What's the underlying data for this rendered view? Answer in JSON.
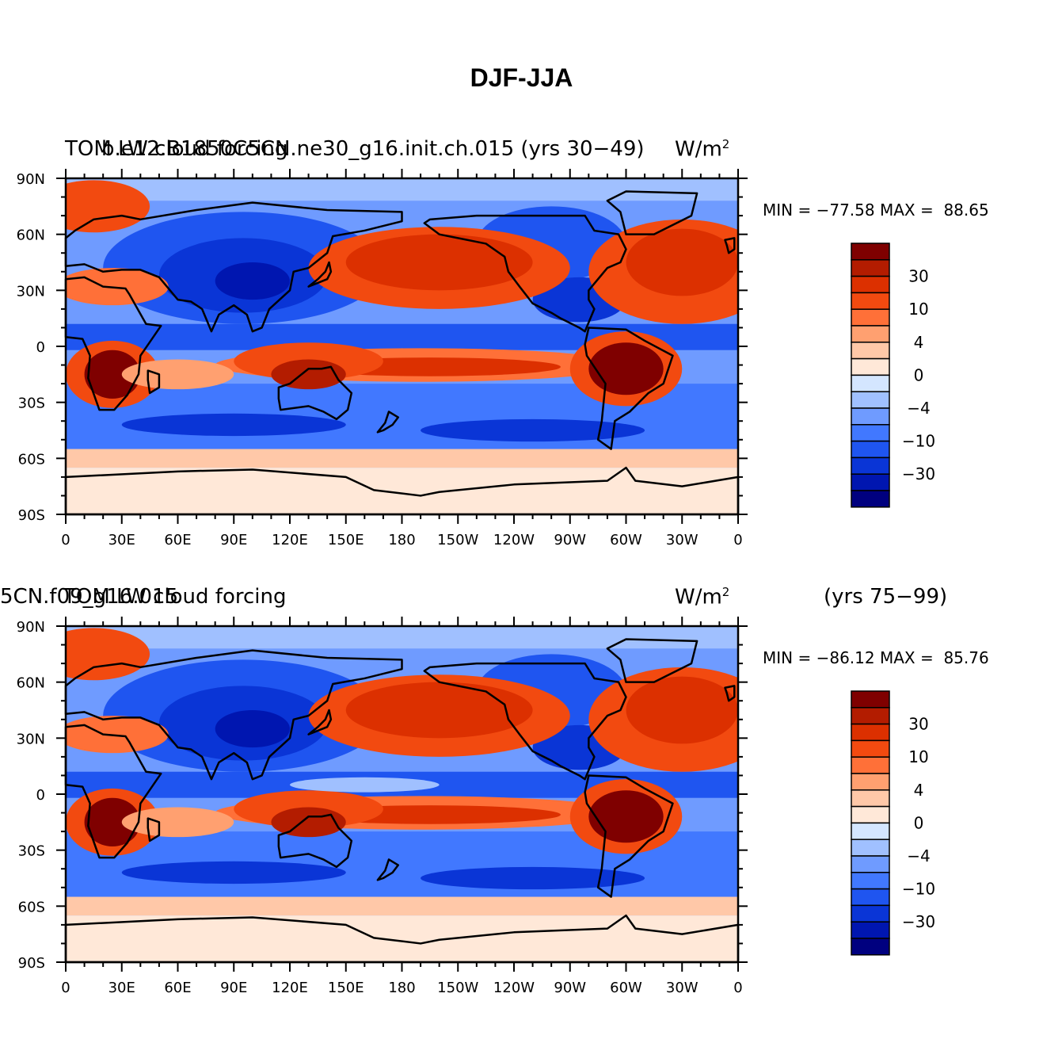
{
  "figure": {
    "title": "DJF-JJA",
    "lon_labels": [
      "0",
      "30E",
      "60E",
      "90E",
      "120E",
      "150E",
      "180",
      "150W",
      "120W",
      "90W",
      "60W",
      "30W",
      "0"
    ],
    "lat_labels": [
      "90N",
      "60N",
      "30N",
      "0",
      "30S",
      "60S",
      "90S"
    ],
    "colorbar_labels": [
      "30",
      "10",
      "4",
      "0",
      "−4",
      "−10",
      "−30"
    ],
    "colorbar_colors": [
      "#00007f",
      "#0016b0",
      "#0a35d6",
      "#1f55f0",
      "#4178ff",
      "#6f9bff",
      "#a0c0ff",
      "#d4e6ff",
      "#ffe8d8",
      "#ffc8a8",
      "#ffa070",
      "#ff7038",
      "#f24a10",
      "#dc3000",
      "#b31c00",
      "#7f0000"
    ]
  },
  "panels": [
    {
      "id": "top",
      "left_text": "TOM LW cloud forcing",
      "overlay_text": "b.e12.B1850C5CN.ne30_g16.init.ch.015 (yrs 30−49)",
      "units": "W/m",
      "units_exp": "2",
      "min_label": "MIN =",
      "min_value": "−77.58",
      "max_label": "MAX =",
      "max_value": "88.65"
    },
    {
      "id": "bottom",
      "left_text": "TOM LW cloud forcing",
      "overlay_text": "5CN.f09_g16.015",
      "right_text": "(yrs 75−99)",
      "units": "W/m",
      "units_exp": "2",
      "min_label": "MIN =",
      "min_value": "−86.12",
      "max_label": "MAX =",
      "max_value": "85.76"
    }
  ]
}
